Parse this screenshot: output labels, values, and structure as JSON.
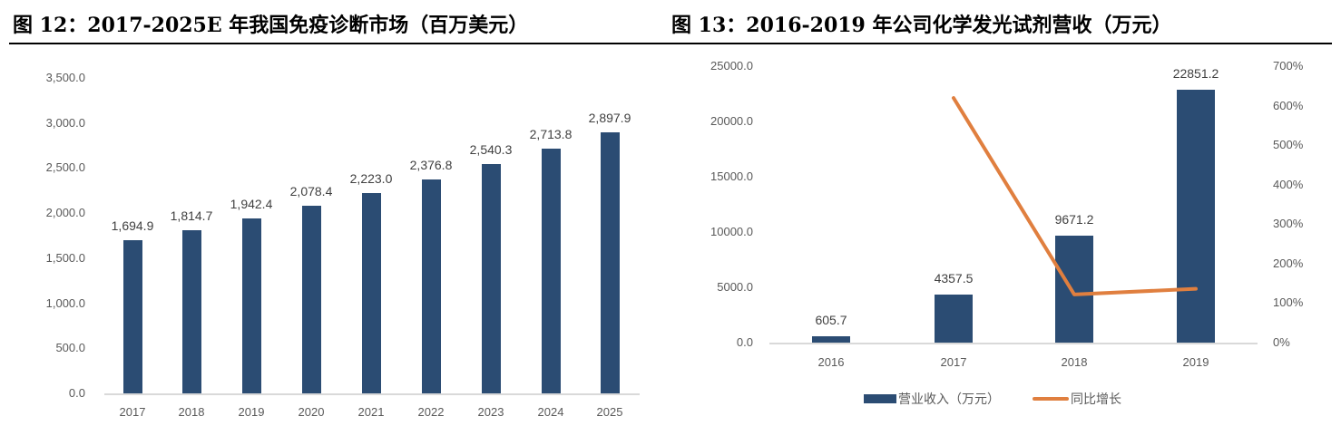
{
  "titles": {
    "left": "图 12：2017-2025E 年我国免疫诊断市场（百万美元）",
    "right": "图 13：2016-2019 年公司化学发光试剂营收（万元）"
  },
  "chart_data": [
    {
      "type": "bar",
      "title": "图 12：2017-2025E 年我国免疫诊断市场（百万美元）",
      "categories": [
        "2017",
        "2018",
        "2019",
        "2020",
        "2021",
        "2022",
        "2023",
        "2024",
        "2025"
      ],
      "values": [
        1694.9,
        1814.7,
        1942.4,
        2078.4,
        2223.0,
        2376.8,
        2540.3,
        2713.8,
        2897.9
      ],
      "value_labels": [
        "1,694.9",
        "1,814.7",
        "1,942.4",
        "2,078.4",
        "2,223.0",
        "2,376.8",
        "2,540.3",
        "2,713.8",
        "2,897.9"
      ],
      "xlabel": "",
      "ylabel": "",
      "ylim": [
        0,
        3500
      ],
      "yticks": [
        "0.0",
        "500.0",
        "1,000.0",
        "1,500.0",
        "2,000.0",
        "2,500.0",
        "3,000.0",
        "3,500.0"
      ],
      "grid": false,
      "color": "#2b4c73"
    },
    {
      "type": "bar+line",
      "title": "图 13：2016-2019 年公司化学发光试剂营收（万元）",
      "categories": [
        "2016",
        "2017",
        "2018",
        "2019"
      ],
      "series": [
        {
          "name": "营业收入（万元）",
          "type": "bar",
          "axis": "left",
          "values": [
            605.7,
            4357.5,
            9671.2,
            22851.2
          ],
          "value_labels": [
            "605.7",
            "4357.5",
            "9671.2",
            "22851.2"
          ],
          "color": "#2b4c73"
        },
        {
          "name": "同比增长",
          "type": "line",
          "axis": "right",
          "values": [
            null,
            619.4,
            121.9,
            136.3
          ],
          "unit": "%",
          "color": "#e07f3f"
        }
      ],
      "ylim_left": [
        0,
        25000
      ],
      "yticks_left": [
        "0.0",
        "5000.0",
        "10000.0",
        "15000.0",
        "20000.0",
        "25000.0"
      ],
      "ylim_right": [
        0,
        700
      ],
      "yticks_right": [
        "0%",
        "100%",
        "200%",
        "300%",
        "400%",
        "500%",
        "600%",
        "700%"
      ],
      "legend_position": "bottom",
      "grid": false
    }
  ]
}
